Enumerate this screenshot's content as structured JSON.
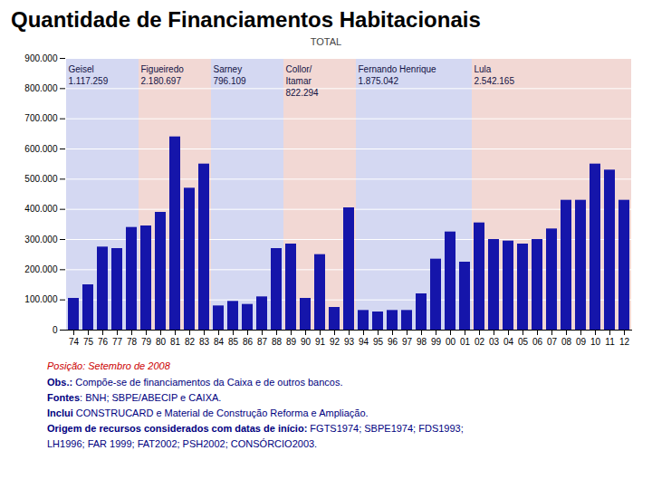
{
  "chart_data": {
    "type": "bar",
    "title": "Quantidade de Financiamentos Habitacionais",
    "subtitle": "TOTAL",
    "categories": [
      "74",
      "75",
      "76",
      "77",
      "78",
      "79",
      "80",
      "81",
      "82",
      "83",
      "84",
      "85",
      "86",
      "87",
      "88",
      "89",
      "90",
      "91",
      "92",
      "93",
      "94",
      "95",
      "96",
      "97",
      "98",
      "99",
      "00",
      "01",
      "02",
      "03",
      "04",
      "05",
      "06",
      "07",
      "08",
      "09",
      "10",
      "11",
      "12"
    ],
    "values": [
      105000,
      150000,
      275000,
      270000,
      340000,
      345000,
      390000,
      640000,
      470000,
      550000,
      80000,
      95000,
      85000,
      110000,
      270000,
      285000,
      105000,
      250000,
      75000,
      405000,
      65000,
      60000,
      65000,
      65000,
      120000,
      235000,
      325000,
      225000,
      355000,
      300000,
      295000,
      285000,
      300000,
      335000,
      430000,
      430000,
      550000,
      530000,
      430000
    ],
    "color": "#1515aa",
    "ylim": [
      0,
      900000
    ],
    "yticks": [
      0,
      {
        "value": 100000,
        "label": "100.000"
      },
      {
        "value": 200000,
        "label": "200.000"
      },
      {
        "value": 300000,
        "label": "300.000"
      },
      {
        "value": 400000,
        "label": "400.000"
      },
      {
        "value": 500000,
        "label": "500.000"
      },
      {
        "value": 600000,
        "label": "600.000"
      },
      {
        "value": 700000,
        "label": "700.000"
      },
      {
        "value": 800000,
        "label": "800.000"
      },
      {
        "value": 900000,
        "label": "900.000"
      }
    ],
    "grid": true,
    "regions": [
      {
        "name": "Geisel",
        "total": "1.117.259",
        "from": "74",
        "to": "78",
        "color": "#b0b8e8"
      },
      {
        "name": "Figueiredo",
        "total": "2.180.697",
        "from": "79",
        "to": "83",
        "color": "#e8b8b0"
      },
      {
        "name": "Sarney",
        "total": "796.109",
        "from": "84",
        "to": "88",
        "color": "#b0b8e8"
      },
      {
        "name": "Collor/\nItamar",
        "total": "822.294",
        "from": "89",
        "to": "93",
        "color": "#e8b8b0"
      },
      {
        "name": "Fernando Henrique",
        "total": "1.875.042",
        "from": "94",
        "to": "01",
        "color": "#b0b8e8"
      },
      {
        "name": "Lula",
        "total": "2.542.165",
        "from": "02",
        "to": "12",
        "color": "#e8b8b0"
      }
    ],
    "note": {
      "text": "Posição: Setembro de 2008",
      "color": "#cc0000"
    },
    "annotations": [
      {
        "bold": "Obs.:",
        "text": " Compõe-se de financiamentos da Caixa e de outros bancos."
      },
      {
        "bold": "Fontes",
        "text": ": BNH; SBPE/ABECIP e CAIXA."
      },
      {
        "bold": "Inclui ",
        "text": "CONSTRUCARD e Material de Construção Reforma e Ampliação."
      },
      {
        "bold": "Origem de recursos considerados com datas de início:",
        "text": " FGTS1974; SBPE1974; FDS1993;"
      },
      {
        "text": "LH1996; FAR 1999; FAT2002; PSH2002; CONSÓRCIO2003."
      }
    ],
    "annotation_color": "#000080"
  }
}
